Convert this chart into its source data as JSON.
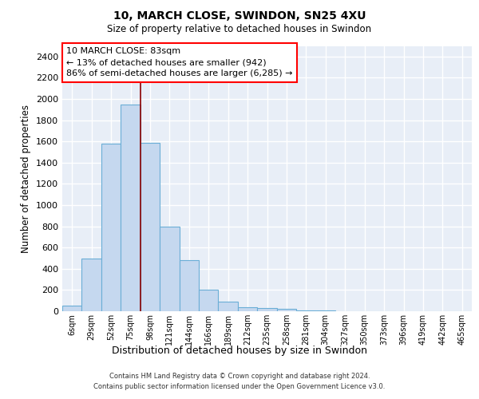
{
  "title1": "10, MARCH CLOSE, SWINDON, SN25 4XU",
  "title2": "Size of property relative to detached houses in Swindon",
  "xlabel": "Distribution of detached houses by size in Swindon",
  "ylabel": "Number of detached properties",
  "categories": [
    "6sqm",
    "29sqm",
    "52sqm",
    "75sqm",
    "98sqm",
    "121sqm",
    "144sqm",
    "166sqm",
    "189sqm",
    "212sqm",
    "235sqm",
    "258sqm",
    "281sqm",
    "304sqm",
    "327sqm",
    "350sqm",
    "373sqm",
    "396sqm",
    "419sqm",
    "442sqm",
    "465sqm"
  ],
  "values": [
    50,
    500,
    1580,
    1950,
    1590,
    800,
    480,
    200,
    90,
    40,
    30,
    20,
    10,
    5,
    2,
    2,
    2,
    2,
    2,
    2,
    2
  ],
  "bar_color": "#c5d8ef",
  "bar_edge_color": "#6aaed6",
  "annotation_text": "10 MARCH CLOSE: 83sqm\n← 13% of detached houses are smaller (942)\n86% of semi-detached houses are larger (6,285) →",
  "vline_x": 3.5,
  "vline_color": "#8b0000",
  "ylim": [
    0,
    2500
  ],
  "yticks": [
    0,
    200,
    400,
    600,
    800,
    1000,
    1200,
    1400,
    1600,
    1800,
    2000,
    2200,
    2400
  ],
  "footer1": "Contains HM Land Registry data © Crown copyright and database right 2024.",
  "footer2": "Contains public sector information licensed under the Open Government Licence v3.0.",
  "bg_color": "#e8eef7",
  "grid_color": "#ffffff"
}
